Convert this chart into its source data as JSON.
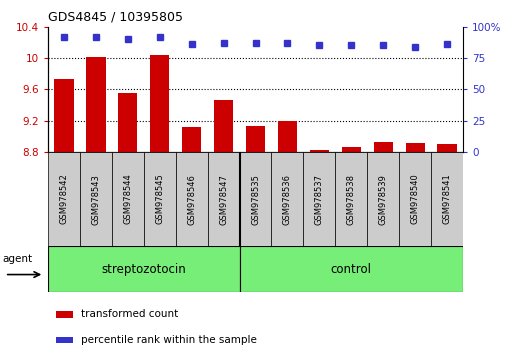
{
  "title": "GDS4845 / 10395805",
  "samples": [
    "GSM978542",
    "GSM978543",
    "GSM978544",
    "GSM978545",
    "GSM978546",
    "GSM978547",
    "GSM978535",
    "GSM978536",
    "GSM978537",
    "GSM978538",
    "GSM978539",
    "GSM978540",
    "GSM978541"
  ],
  "bar_values": [
    9.73,
    10.01,
    9.55,
    10.04,
    9.12,
    9.47,
    9.14,
    9.2,
    8.83,
    8.87,
    8.93,
    8.92,
    8.9
  ],
  "percentile_values": [
    92,
    92,
    90,
    92,
    86,
    87,
    87,
    87,
    85,
    85,
    85,
    84,
    86
  ],
  "bar_color": "#CC0000",
  "percentile_color": "#3333CC",
  "ylim_left": [
    8.8,
    10.4
  ],
  "ylim_right": [
    0,
    100
  ],
  "yticks_left": [
    8.8,
    9.2,
    9.6,
    10.0,
    10.4
  ],
  "yticks_right": [
    0,
    25,
    50,
    75,
    100
  ],
  "ytick_labels_left": [
    "8.8",
    "9.2",
    "9.6",
    "10",
    "10.4"
  ],
  "ytick_labels_right": [
    "0",
    "25",
    "50",
    "75",
    "100%"
  ],
  "group1_label": "streptozotocin",
  "group2_label": "control",
  "group1_count": 6,
  "group2_count": 7,
  "agent_label": "agent",
  "legend_bar_label": "transformed count",
  "legend_percentile_label": "percentile rank within the sample",
  "bar_width": 0.6,
  "background_color": "#ffffff",
  "group_bg_color": "#77EE77",
  "tick_bg_color": "#CCCCCC"
}
